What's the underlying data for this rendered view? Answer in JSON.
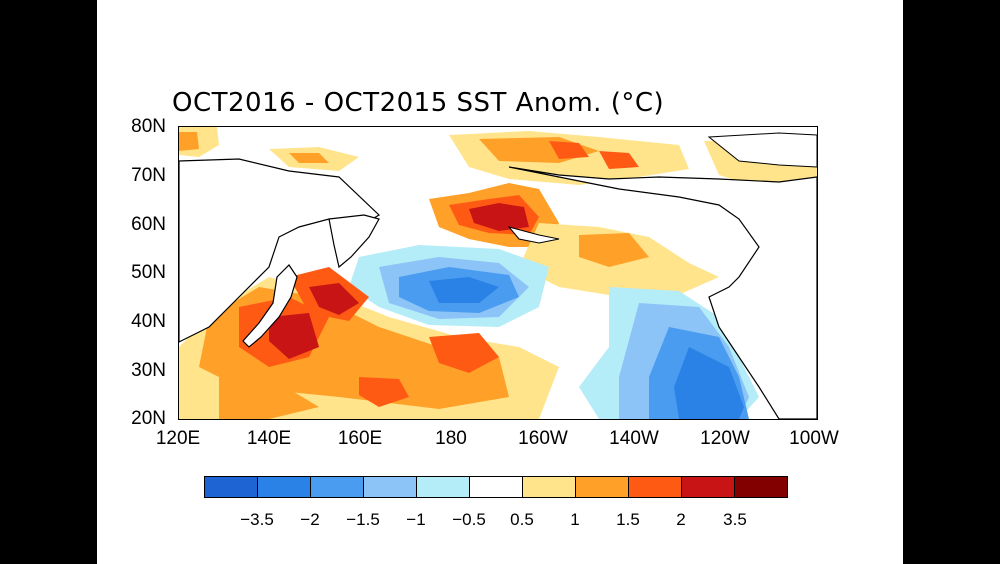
{
  "title": "OCT2016 - OCT2015 SST Anom. (°C)",
  "map": {
    "lat_labels": [
      "80N",
      "70N",
      "60N",
      "50N",
      "40N",
      "30N",
      "20N"
    ],
    "lon_labels": [
      "120E",
      "140E",
      "160E",
      "180",
      "160W",
      "140W",
      "120W",
      "100W"
    ],
    "lat_range": [
      20,
      80
    ],
    "lon_range_east": [
      120,
      260
    ]
  },
  "colorbar": {
    "colors": [
      "#1e64d2",
      "#2a82e6",
      "#4a9cf0",
      "#8cc4f8",
      "#b4ecf8",
      "#ffffff",
      "#ffe48c",
      "#ffa028",
      "#ff5a14",
      "#c81414",
      "#820000"
    ],
    "tick_labels": [
      "-3.5",
      "-2",
      "-1.5",
      "-1",
      "-0.5",
      "0.5",
      "1",
      "1.5",
      "2",
      "3.5"
    ]
  }
}
